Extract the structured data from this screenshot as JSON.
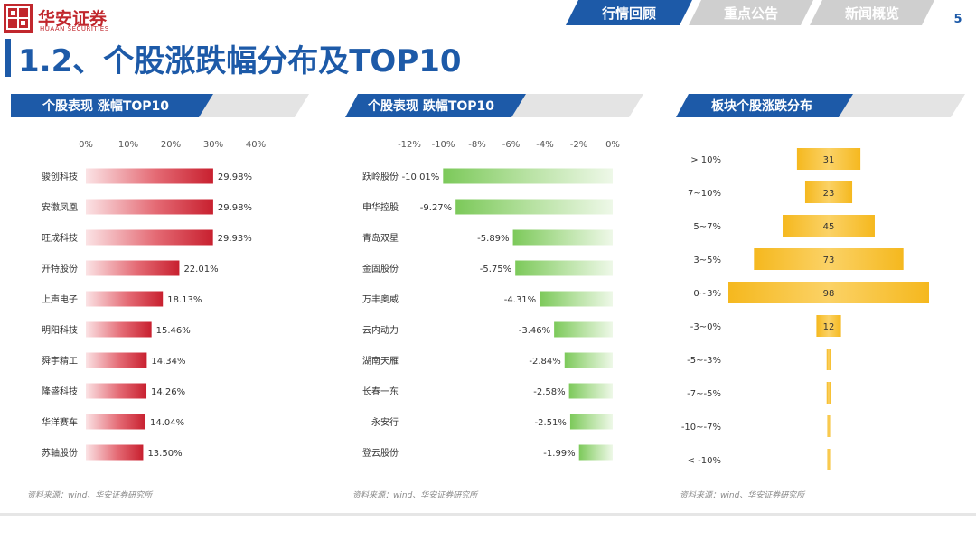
{
  "header": {
    "logo_text_cn": "华安证券",
    "logo_text_en": "HUAAN SECURITIES",
    "tabs": [
      {
        "label": "行情回顾",
        "active": true
      },
      {
        "label": "重点公告",
        "active": false
      },
      {
        "label": "新闻概览",
        "active": false
      }
    ],
    "page_number": "5"
  },
  "page_title": "1.2、个股涨跌幅分布及TOP10",
  "sections": [
    {
      "label": "个股表现 涨幅TOP10"
    },
    {
      "label": "个股表现 跌幅TOP10"
    },
    {
      "label": "板块个股涨跌分布"
    }
  ],
  "sources": [
    "资料来源：wind、华安证券研究所",
    "资料来源：wind、华安证券研究所",
    "资料来源：wind、华安证券研究所"
  ],
  "colors": {
    "brand_blue": "#1d5aa8",
    "gain_red": "#c8202f",
    "loss_green": "#7cc95a",
    "dist_gold": "#f5b81e"
  },
  "chart_data": [
    {
      "type": "bar",
      "orientation": "horizontal",
      "categories": [
        "骏创科技",
        "安徽凤凰",
        "旺成科技",
        "开特股份",
        "上声电子",
        "明阳科技",
        "舜宇精工",
        "隆盛科技",
        "华洋赛车",
        "苏轴股份"
      ],
      "values": [
        29.98,
        29.98,
        29.93,
        22.01,
        18.13,
        15.46,
        14.34,
        14.26,
        14.04,
        13.5
      ],
      "value_labels": [
        "29.98%",
        "29.98%",
        "29.93%",
        "22.01%",
        "18.13%",
        "15.46%",
        "14.34%",
        "14.26%",
        "14.04%",
        "13.50%"
      ],
      "xlim": [
        0,
        40
      ],
      "xticks": [
        0,
        10,
        20,
        30,
        40
      ],
      "xtick_labels": [
        "0%",
        "10%",
        "20%",
        "30%",
        "40%"
      ],
      "axis_position": "top",
      "grid": false
    },
    {
      "type": "bar",
      "orientation": "horizontal",
      "categories": [
        "跃岭股份",
        "申华控股",
        "青岛双星",
        "金固股份",
        "万丰奥威",
        "云内动力",
        "湖南天雁",
        "长春一东",
        "永安行",
        "登云股份"
      ],
      "values": [
        -10.01,
        -9.27,
        -5.89,
        -5.75,
        -4.31,
        -3.46,
        -2.84,
        -2.58,
        -2.51,
        -1.99
      ],
      "value_labels": [
        "-10.01%",
        "-9.27%",
        "-5.89%",
        "-5.75%",
        "-4.31%",
        "-3.46%",
        "-2.84%",
        "-2.58%",
        "-2.51%",
        "-1.99%"
      ],
      "xlim": [
        -12,
        0
      ],
      "xticks": [
        -12,
        -10,
        -8,
        -6,
        -4,
        -2,
        0
      ],
      "xtick_labels": [
        "-12%",
        "-10%",
        "-8%",
        "-6%",
        "-4%",
        "-2%",
        "0%"
      ],
      "axis_position": "top",
      "grid": false
    },
    {
      "type": "bar",
      "orientation": "horizontal",
      "style": "funnel",
      "categories": [
        "> 10%",
        "7~10%",
        "5~7%",
        "3~5%",
        "0~3%",
        "-3~0%",
        "-5~-3%",
        "-7~-5%",
        "-10~-7%",
        "< -10%"
      ],
      "values": [
        31,
        23,
        45,
        73,
        98,
        12,
        2,
        2,
        1,
        1
      ],
      "value_labels": [
        "31",
        "23",
        "45",
        "73",
        "98",
        "12",
        "",
        "",
        "",
        ""
      ],
      "grid": false
    }
  ]
}
